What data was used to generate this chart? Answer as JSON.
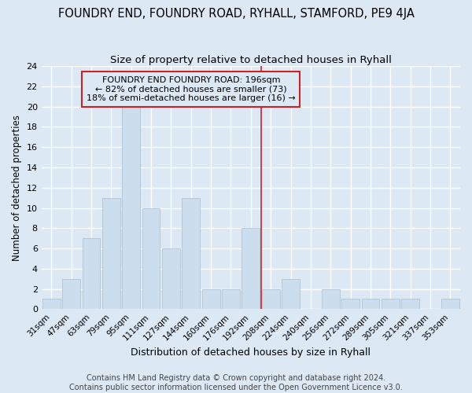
{
  "title": "FOUNDRY END, FOUNDRY ROAD, RYHALL, STAMFORD, PE9 4JA",
  "subtitle": "Size of property relative to detached houses in Ryhall",
  "xlabel": "Distribution of detached houses by size in Ryhall",
  "ylabel": "Number of detached properties",
  "bar_color": "#ccdded",
  "bar_edge_color": "#aabccc",
  "categories": [
    "31sqm",
    "47sqm",
    "63sqm",
    "79sqm",
    "95sqm",
    "111sqm",
    "127sqm",
    "144sqm",
    "160sqm",
    "176sqm",
    "192sqm",
    "208sqm",
    "224sqm",
    "240sqm",
    "256sqm",
    "272sqm",
    "289sqm",
    "305sqm",
    "321sqm",
    "337sqm",
    "353sqm"
  ],
  "values": [
    1,
    3,
    7,
    11,
    20,
    10,
    6,
    11,
    2,
    2,
    8,
    2,
    3,
    0,
    2,
    1,
    1,
    1,
    1,
    0,
    1
  ],
  "ylim": [
    0,
    24
  ],
  "yticks": [
    0,
    2,
    4,
    6,
    8,
    10,
    12,
    14,
    16,
    18,
    20,
    22,
    24
  ],
  "vline_index": 10,
  "vline_color": "#cc2222",
  "annotation_text": "FOUNDRY END FOUNDRY ROAD: 196sqm\n← 82% of detached houses are smaller (73)\n18% of semi-detached houses are larger (16) →",
  "annotation_box_color": "#cc2222",
  "bg_color": "#dce8f4",
  "grid_color": "#ffffff",
  "title_fontsize": 10.5,
  "subtitle_fontsize": 9.5,
  "annot_fontsize": 8,
  "xlabel_fontsize": 9,
  "ylabel_fontsize": 8.5,
  "footer_text": "Contains HM Land Registry data © Crown copyright and database right 2024.\nContains public sector information licensed under the Open Government Licence v3.0.",
  "footer_fontsize": 7
}
